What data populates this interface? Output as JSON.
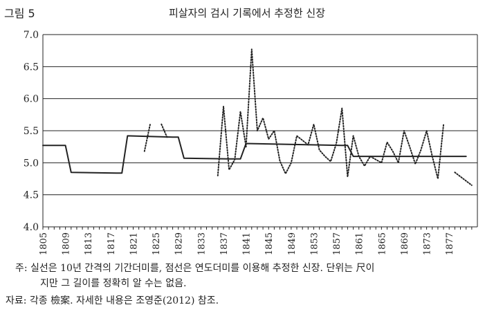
{
  "figure_label": "그림 5",
  "chart_data": {
    "type": "line",
    "title": "피살자의 검시 기록에서 추정한 신장",
    "xlabel": "",
    "ylabel": "",
    "ylim": [
      4.0,
      7.0
    ],
    "yticks": [
      "4.0",
      "4.5",
      "5.0",
      "5.5",
      "6.0",
      "6.5",
      "7.0"
    ],
    "xlim": [
      1805,
      1881
    ],
    "xticks": [
      "1805",
      "1809",
      "1813",
      "1817",
      "1821",
      "1825",
      "1829",
      "1833",
      "1837",
      "1841",
      "1845",
      "1849",
      "1853",
      "1857",
      "1861",
      "1865",
      "1869",
      "1873",
      "1877"
    ],
    "grid": "horizontal",
    "series": [
      {
        "style": "solid",
        "color": "#222222",
        "segments": [
          [
            [
              1805,
              5.27
            ],
            [
              1809,
              5.27
            ],
            [
              1810,
              4.85
            ],
            [
              1818,
              4.84
            ],
            [
              1819,
              4.84
            ],
            [
              1820,
              5.42
            ],
            [
              1828,
              5.4
            ],
            [
              1829,
              5.4
            ],
            [
              1830,
              5.07
            ],
            [
              1838,
              5.06
            ],
            [
              1839,
              5.06
            ],
            [
              1840,
              5.06
            ],
            [
              1841,
              5.3
            ],
            [
              1858,
              5.27
            ],
            [
              1859,
              5.27
            ],
            [
              1860,
              5.1
            ],
            [
              1880,
              5.1
            ]
          ]
        ]
      },
      {
        "style": "dotted",
        "color": "#222222",
        "segments": [
          [
            [
              1823,
              5.18
            ],
            [
              1824,
              5.6
            ]
          ],
          [
            [
              1826,
              5.6
            ],
            [
              1827,
              5.4
            ]
          ],
          [
            [
              1836,
              4.8
            ],
            [
              1837,
              5.88
            ],
            [
              1838,
              4.89
            ],
            [
              1839,
              5.05
            ],
            [
              1840,
              5.8
            ],
            [
              1841,
              5.25
            ],
            [
              1842,
              6.77
            ],
            [
              1843,
              5.5
            ],
            [
              1844,
              5.7
            ],
            [
              1845,
              5.37
            ],
            [
              1846,
              5.5
            ],
            [
              1847,
              5.03
            ],
            [
              1848,
              4.83
            ],
            [
              1849,
              5.0
            ],
            [
              1850,
              5.42
            ],
            [
              1851,
              5.35
            ],
            [
              1852,
              5.28
            ],
            [
              1853,
              5.6
            ],
            [
              1854,
              5.2
            ],
            [
              1855,
              5.1
            ],
            [
              1856,
              5.02
            ],
            [
              1857,
              5.3
            ],
            [
              1858,
              5.85
            ],
            [
              1859,
              4.78
            ],
            [
              1860,
              5.42
            ],
            [
              1861,
              5.1
            ],
            [
              1862,
              4.95
            ],
            [
              1863,
              5.1
            ],
            [
              1864,
              5.05
            ],
            [
              1865,
              5.0
            ],
            [
              1866,
              5.32
            ],
            [
              1867,
              5.18
            ],
            [
              1868,
              5.0
            ],
            [
              1869,
              5.5
            ],
            [
              1870,
              5.25
            ],
            [
              1871,
              4.98
            ],
            [
              1872,
              5.2
            ],
            [
              1873,
              5.5
            ],
            [
              1874,
              5.1
            ],
            [
              1875,
              4.75
            ],
            [
              1876,
              5.6
            ]
          ],
          [
            [
              1878,
              4.85
            ],
            [
              1881,
              4.65
            ]
          ]
        ]
      }
    ]
  },
  "notes": {
    "note1": "주: 실선은 10년 간격의 기간더미를, 점선은 연도더미를 이용해 추정한 신장. 단위는 尺이",
    "note2": "지만 그 길이를 정확히 알 수는 없음.",
    "source": "자료: 각종 檢案. 자세한 내용은 조영준(2012) 참조."
  }
}
